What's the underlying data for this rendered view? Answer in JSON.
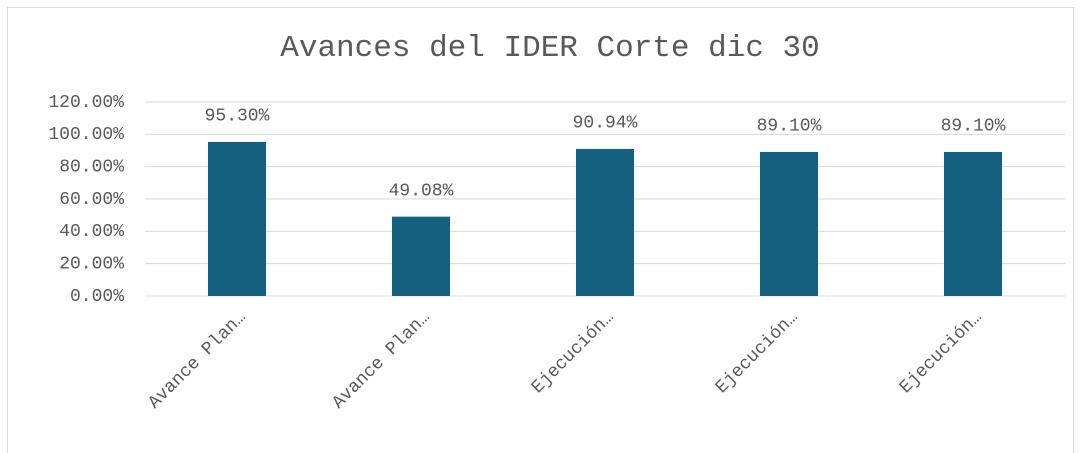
{
  "chart_data": {
    "type": "bar",
    "title": "Avances del IDER Corte dic 30",
    "categories": [
      "Avance Plan…",
      "Avance Plan…",
      "Ejecución…",
      "Ejecución…",
      "Ejecución…"
    ],
    "values": [
      95.3,
      49.08,
      90.94,
      89.1,
      89.1
    ],
    "value_labels": [
      "95.30%",
      "49.08%",
      "90.94%",
      "89.10%",
      "89.10%"
    ],
    "color": "#16607f",
    "ylim": [
      0,
      120
    ],
    "yticks": [
      {
        "value": 0,
        "label": "0.00%"
      },
      {
        "value": 20,
        "label": "20.00%"
      },
      {
        "value": 40,
        "label": "40.00%"
      },
      {
        "value": 60,
        "label": "60.00%"
      },
      {
        "value": 80,
        "label": "80.00%"
      },
      {
        "value": 100,
        "label": "100.00%"
      },
      {
        "value": 120,
        "label": "120.00%"
      }
    ],
    "grid": true
  }
}
